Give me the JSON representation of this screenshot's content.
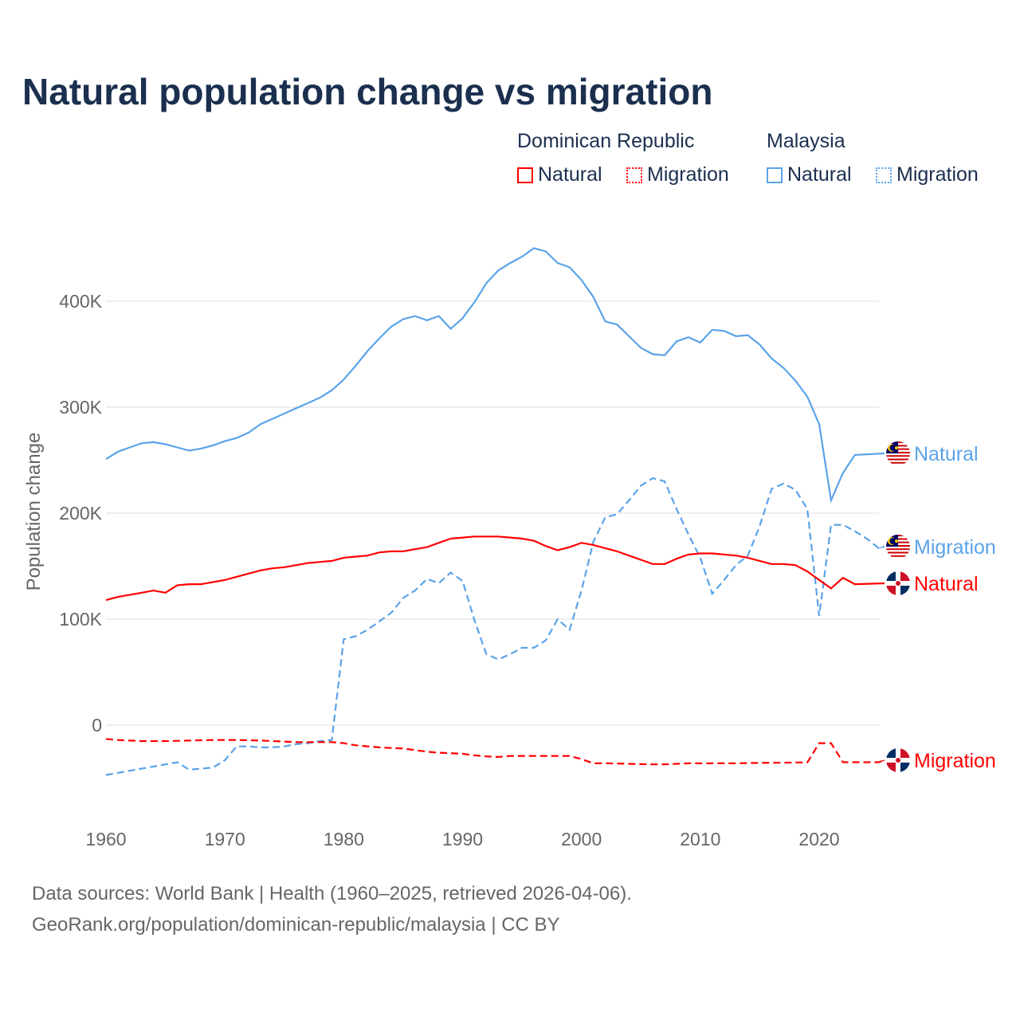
{
  "title": "Natural population change vs migration",
  "legend": {
    "groups": [
      {
        "name": "Dominican Republic",
        "color": "#ff0000",
        "items": [
          "Natural",
          "Migration"
        ]
      },
      {
        "name": "Malaysia",
        "color": "#5ba3e8",
        "items": [
          "Natural",
          "Migration"
        ]
      }
    ]
  },
  "chart_data": {
    "type": "line",
    "title": "Natural population change vs migration",
    "xlabel": "",
    "ylabel": "Population change",
    "xlim": [
      1960,
      2025
    ],
    "ylim": [
      -70000,
      460000
    ],
    "x_ticks": [
      1960,
      1970,
      1980,
      1990,
      2000,
      2010,
      2020
    ],
    "x_tick_labels": [
      "1960",
      "1970",
      "1980",
      "1990",
      "2000",
      "2010",
      "2020"
    ],
    "y_ticks": [
      0,
      100000,
      200000,
      300000,
      400000
    ],
    "y_tick_labels": [
      "0",
      "100K",
      "200K",
      "300K",
      "400K"
    ],
    "grid": true,
    "legend_placement": "top-right",
    "series": [
      {
        "name": "Malaysia Natural",
        "end_label": "Natural",
        "country": "Malaysia",
        "color": "#5ba3e8",
        "dash": false,
        "start_year": 1960,
        "values": [
          251000,
          258000,
          262000,
          266000,
          267000,
          265000,
          262000,
          259000,
          261000,
          264000,
          268000,
          271000,
          276000,
          284000,
          289000,
          294000,
          299000,
          304000,
          309000,
          316000,
          326000,
          339000,
          353000,
          365000,
          376000,
          383000,
          386000,
          382000,
          386000,
          374000,
          384000,
          399000,
          417000,
          429000,
          436000,
          442000,
          450000,
          447000,
          436000,
          432000,
          420000,
          404000,
          381000,
          378000,
          367000,
          356000,
          350000,
          349000,
          362000,
          366000,
          361000,
          373000,
          372000,
          367000,
          368000,
          359000,
          346000,
          337000,
          325000,
          310000,
          284000,
          212000,
          238000,
          255000
        ]
      },
      {
        "name": "Malaysia Migration",
        "end_label": "Migration",
        "country": "Malaysia",
        "color": "#5ba3e8",
        "dash": true,
        "start_year": 1960,
        "values": [
          -47000,
          -45000,
          -43000,
          -41000,
          -39000,
          -37000,
          -35000,
          -42000,
          -41000,
          -40000,
          -33000,
          -20000,
          -20000,
          -21000,
          -21000,
          -20000,
          -18000,
          -17000,
          -15000,
          -14000,
          81000,
          84000,
          90000,
          98000,
          106000,
          120000,
          127000,
          138000,
          134000,
          144000,
          136000,
          99000,
          67000,
          62000,
          67000,
          73000,
          73000,
          80000,
          100000,
          90000,
          127000,
          173000,
          196000,
          199000,
          212000,
          226000,
          233000,
          230000,
          204000,
          180000,
          158000,
          124000,
          137000,
          151000,
          160000,
          188000,
          223000,
          228000,
          222000,
          204000,
          103000,
          189000,
          189000,
          183000,
          176000,
          167000
        ]
      },
      {
        "name": "Dominican Republic Natural",
        "end_label": "Natural",
        "country": "Dominican Republic",
        "color": "#ff0000",
        "dash": false,
        "start_year": 1960,
        "values": [
          118000,
          121000,
          123000,
          125000,
          127000,
          125000,
          132000,
          133000,
          133000,
          135000,
          137000,
          140000,
          143000,
          146000,
          148000,
          149000,
          151000,
          153000,
          154000,
          155000,
          158000,
          159000,
          160000,
          163000,
          164000,
          164000,
          166000,
          168000,
          172000,
          176000,
          177000,
          178000,
          178000,
          178000,
          177000,
          176000,
          174000,
          169000,
          165000,
          168000,
          172000,
          170000,
          167000,
          164000,
          160000,
          156000,
          152000,
          152000,
          157000,
          161000,
          162000,
          162000,
          161000,
          160000,
          158000,
          155000,
          152000,
          152000,
          151000,
          145000,
          137000,
          129000,
          139000,
          133000
        ]
      },
      {
        "name": "Dominican Republic Migration",
        "end_label": "Migration",
        "country": "Dominican Republic",
        "color": "#ff0000",
        "dash": true,
        "start_year": 1960,
        "values": [
          -13000,
          -14000,
          -14500,
          -15000,
          -15000,
          -15000,
          -14800,
          -14500,
          -14300,
          -14000,
          -14000,
          -14000,
          -14200,
          -14500,
          -15000,
          -15500,
          -16000,
          -16000,
          -16000,
          -16000,
          -17000,
          -19000,
          -20000,
          -21000,
          -21500,
          -22000,
          -23500,
          -25000,
          -26000,
          -26500,
          -27000,
          -28500,
          -29500,
          -30000,
          -29000,
          -29000,
          -29000,
          -29000,
          -29000,
          -29000,
          -32000,
          -36000,
          -36000,
          -36200,
          -36500,
          -36800,
          -37000,
          -37000,
          -36500,
          -36000,
          -36000,
          -36000,
          -36000,
          -36000,
          -35800,
          -35600,
          -35500,
          -35400,
          -35300,
          -35200,
          -17000,
          -17000,
          -35000,
          -35000,
          -35000,
          -35000
        ]
      }
    ]
  },
  "footer": {
    "line1": "Data sources: World Bank | Health (1960–2025, retrieved 2026-04-06).",
    "line2": "GeoRank.org/population/dominican-republic/malaysia | CC BY"
  }
}
